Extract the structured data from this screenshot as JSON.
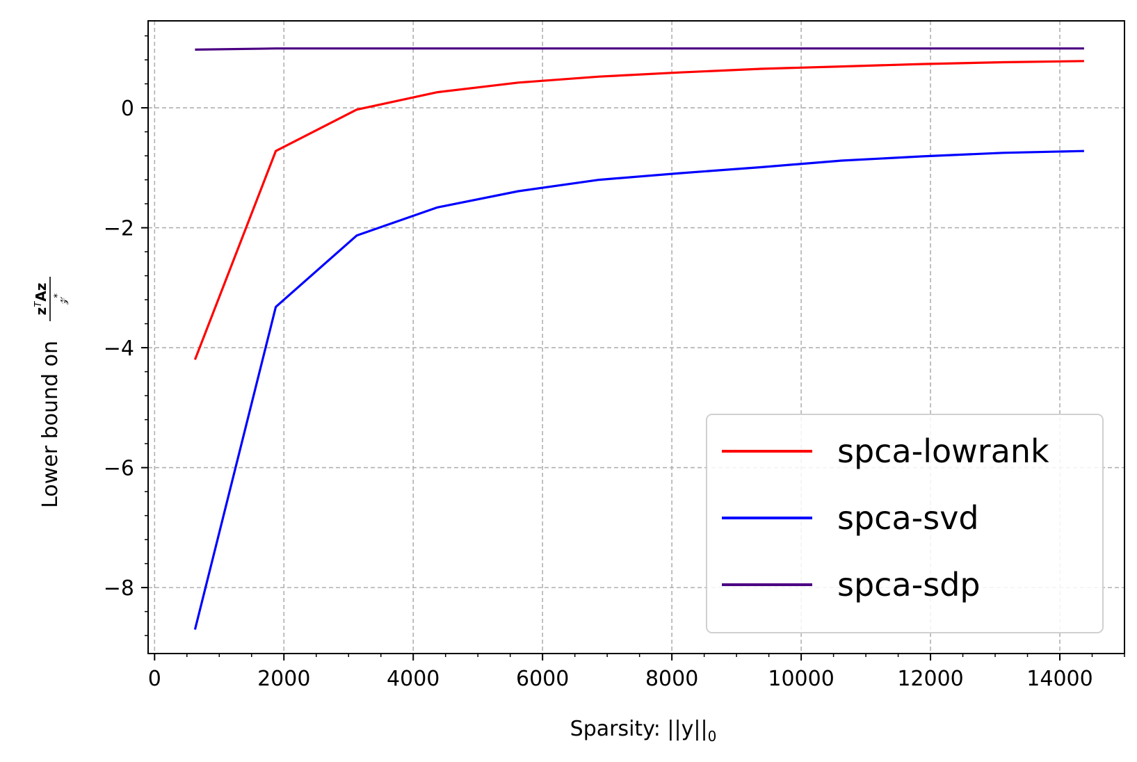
{
  "chart_data": {
    "type": "line",
    "xlabel": "Sparsity: ||y||",
    "xlabel_sub": "0",
    "ylabel": "Lower bound on",
    "ylabel_math": {
      "numerator": "z",
      "numerator_sup": "T",
      "numerator_rest": "Az",
      "denominator": "𝓏",
      "denominator_sup": "*"
    },
    "xlim": [
      -100,
      15000
    ],
    "ylim": [
      -9.1,
      1.45
    ],
    "xticks": [
      0,
      2000,
      4000,
      6000,
      8000,
      10000,
      12000,
      14000
    ],
    "xtick_labels": [
      "0",
      "2000",
      "4000",
      "6000",
      "8000",
      "10000",
      "12000",
      "14000"
    ],
    "yticks": [
      -8,
      -6,
      -4,
      -2,
      0
    ],
    "ytick_labels": [
      "−8",
      "−6",
      "−4",
      "−2",
      "0"
    ],
    "grid": true,
    "legend_position": "lower-right",
    "series": [
      {
        "name": "spca-lowrank",
        "color": "#ff0000",
        "x": [
          625,
          1875,
          3125,
          4375,
          5625,
          6875,
          8125,
          9375,
          10625,
          11875,
          13125,
          14375
        ],
        "y": [
          -4.2,
          -0.72,
          -0.03,
          0.26,
          0.42,
          0.52,
          0.59,
          0.65,
          0.69,
          0.73,
          0.76,
          0.78
        ]
      },
      {
        "name": "spca-svd",
        "color": "#0000ff",
        "x": [
          625,
          1875,
          3125,
          4375,
          5625,
          6875,
          8125,
          9375,
          10625,
          11875,
          13125,
          14375
        ],
        "y": [
          -8.7,
          -3.32,
          -2.13,
          -1.66,
          -1.39,
          -1.2,
          -1.09,
          -0.99,
          -0.88,
          -0.81,
          -0.75,
          -0.72
        ]
      },
      {
        "name": "spca-sdp",
        "color": "#4b0082",
        "x": [
          625,
          1875,
          3125,
          4375,
          5625,
          6875,
          8125,
          9375,
          10625,
          11875,
          13125,
          14375
        ],
        "y": [
          0.97,
          0.99,
          0.99,
          0.99,
          0.99,
          0.99,
          0.99,
          0.99,
          0.99,
          0.99,
          0.99,
          0.99
        ]
      }
    ]
  }
}
